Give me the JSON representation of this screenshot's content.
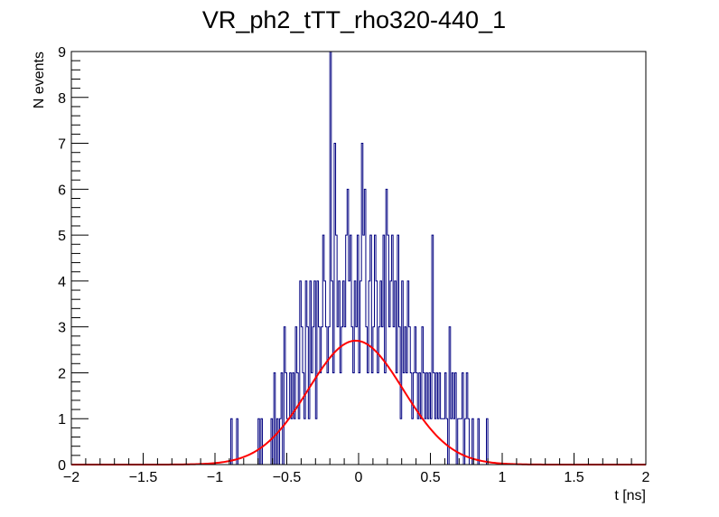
{
  "chart_data": {
    "type": "histogram",
    "title": "VR_ph2_tTT_rho320-440_1",
    "xlabel": "t [ns]",
    "ylabel": "N events",
    "xlim": [
      -2,
      2
    ],
    "ylim": [
      0,
      9
    ],
    "x_ticks": [
      "-2",
      "-1.5",
      "-1",
      "-0.5",
      "0",
      "0.5",
      "1",
      "1.5",
      "2"
    ],
    "y_ticks": [
      "0",
      "1",
      "2",
      "3",
      "4",
      "5",
      "6",
      "7",
      "8",
      "9"
    ],
    "bin_width": 0.01,
    "grid": false,
    "legend": "none",
    "histogram": {
      "color": "#000080",
      "nonzero_bins": [
        {
          "x": -0.89,
          "y": 1
        },
        {
          "x": -0.85,
          "y": 1
        },
        {
          "x": -0.7,
          "y": 1
        },
        {
          "x": -0.68,
          "y": 1
        },
        {
          "x": -0.61,
          "y": 1
        },
        {
          "x": -0.59,
          "y": 2
        },
        {
          "x": -0.57,
          "y": 1
        },
        {
          "x": -0.55,
          "y": 1
        },
        {
          "x": -0.54,
          "y": 2
        },
        {
          "x": -0.52,
          "y": 3
        },
        {
          "x": -0.51,
          "y": 2
        },
        {
          "x": -0.5,
          "y": 1
        },
        {
          "x": -0.49,
          "y": 1
        },
        {
          "x": -0.48,
          "y": 2
        },
        {
          "x": -0.47,
          "y": 1
        },
        {
          "x": -0.46,
          "y": 2
        },
        {
          "x": -0.45,
          "y": 1
        },
        {
          "x": -0.44,
          "y": 3
        },
        {
          "x": -0.43,
          "y": 2
        },
        {
          "x": -0.42,
          "y": 1
        },
        {
          "x": -0.41,
          "y": 4
        },
        {
          "x": -0.4,
          "y": 3
        },
        {
          "x": -0.39,
          "y": 2
        },
        {
          "x": -0.38,
          "y": 1
        },
        {
          "x": -0.37,
          "y": 4
        },
        {
          "x": -0.36,
          "y": 3
        },
        {
          "x": -0.35,
          "y": 1
        },
        {
          "x": -0.34,
          "y": 4
        },
        {
          "x": -0.33,
          "y": 2
        },
        {
          "x": -0.32,
          "y": 3
        },
        {
          "x": -0.31,
          "y": 4
        },
        {
          "x": -0.3,
          "y": 1
        },
        {
          "x": -0.29,
          "y": 4
        },
        {
          "x": -0.28,
          "y": 3
        },
        {
          "x": -0.27,
          "y": 2
        },
        {
          "x": -0.26,
          "y": 3
        },
        {
          "x": -0.25,
          "y": 5
        },
        {
          "x": -0.24,
          "y": 4
        },
        {
          "x": -0.23,
          "y": 3
        },
        {
          "x": -0.22,
          "y": 2
        },
        {
          "x": -0.21,
          "y": 3
        },
        {
          "x": -0.2,
          "y": 9
        },
        {
          "x": -0.19,
          "y": 4
        },
        {
          "x": -0.18,
          "y": 2
        },
        {
          "x": -0.17,
          "y": 7
        },
        {
          "x": -0.16,
          "y": 5
        },
        {
          "x": -0.15,
          "y": 3
        },
        {
          "x": -0.14,
          "y": 4
        },
        {
          "x": -0.13,
          "y": 2
        },
        {
          "x": -0.12,
          "y": 3
        },
        {
          "x": -0.11,
          "y": 4
        },
        {
          "x": -0.1,
          "y": 3
        },
        {
          "x": -0.09,
          "y": 5
        },
        {
          "x": -0.08,
          "y": 6
        },
        {
          "x": -0.07,
          "y": 4
        },
        {
          "x": -0.06,
          "y": 5
        },
        {
          "x": -0.05,
          "y": 3
        },
        {
          "x": -0.04,
          "y": 2
        },
        {
          "x": -0.03,
          "y": 4
        },
        {
          "x": -0.02,
          "y": 3
        },
        {
          "x": -0.01,
          "y": 5
        },
        {
          "x": 0.0,
          "y": 2
        },
        {
          "x": 0.01,
          "y": 4
        },
        {
          "x": 0.02,
          "y": 7
        },
        {
          "x": 0.03,
          "y": 5
        },
        {
          "x": 0.04,
          "y": 6
        },
        {
          "x": 0.05,
          "y": 3
        },
        {
          "x": 0.06,
          "y": 2
        },
        {
          "x": 0.07,
          "y": 4
        },
        {
          "x": 0.08,
          "y": 5
        },
        {
          "x": 0.09,
          "y": 2
        },
        {
          "x": 0.1,
          "y": 3
        },
        {
          "x": 0.11,
          "y": 5
        },
        {
          "x": 0.12,
          "y": 4
        },
        {
          "x": 0.13,
          "y": 2
        },
        {
          "x": 0.14,
          "y": 3
        },
        {
          "x": 0.15,
          "y": 4
        },
        {
          "x": 0.16,
          "y": 3
        },
        {
          "x": 0.17,
          "y": 5
        },
        {
          "x": 0.18,
          "y": 2
        },
        {
          "x": 0.19,
          "y": 6
        },
        {
          "x": 0.2,
          "y": 5
        },
        {
          "x": 0.21,
          "y": 3
        },
        {
          "x": 0.22,
          "y": 4
        },
        {
          "x": 0.23,
          "y": 5
        },
        {
          "x": 0.24,
          "y": 3
        },
        {
          "x": 0.25,
          "y": 4
        },
        {
          "x": 0.26,
          "y": 2
        },
        {
          "x": 0.27,
          "y": 5
        },
        {
          "x": 0.28,
          "y": 3
        },
        {
          "x": 0.29,
          "y": 1
        },
        {
          "x": 0.3,
          "y": 4
        },
        {
          "x": 0.31,
          "y": 2
        },
        {
          "x": 0.32,
          "y": 3
        },
        {
          "x": 0.33,
          "y": 2
        },
        {
          "x": 0.34,
          "y": 4
        },
        {
          "x": 0.35,
          "y": 3
        },
        {
          "x": 0.36,
          "y": 2
        },
        {
          "x": 0.37,
          "y": 1
        },
        {
          "x": 0.38,
          "y": 2
        },
        {
          "x": 0.39,
          "y": 3
        },
        {
          "x": 0.4,
          "y": 2
        },
        {
          "x": 0.41,
          "y": 1
        },
        {
          "x": 0.42,
          "y": 2
        },
        {
          "x": 0.43,
          "y": 1
        },
        {
          "x": 0.44,
          "y": 3
        },
        {
          "x": 0.45,
          "y": 2
        },
        {
          "x": 0.46,
          "y": 1
        },
        {
          "x": 0.47,
          "y": 2
        },
        {
          "x": 0.48,
          "y": 1
        },
        {
          "x": 0.49,
          "y": 2
        },
        {
          "x": 0.5,
          "y": 1
        },
        {
          "x": 0.51,
          "y": 5
        },
        {
          "x": 0.52,
          "y": 2
        },
        {
          "x": 0.53,
          "y": 1
        },
        {
          "x": 0.54,
          "y": 2
        },
        {
          "x": 0.55,
          "y": 1
        },
        {
          "x": 0.56,
          "y": 2
        },
        {
          "x": 0.57,
          "y": 1
        },
        {
          "x": 0.58,
          "y": 1
        },
        {
          "x": 0.59,
          "y": 1
        },
        {
          "x": 0.6,
          "y": 2
        },
        {
          "x": 0.61,
          "y": 1
        },
        {
          "x": 0.63,
          "y": 3
        },
        {
          "x": 0.64,
          "y": 1
        },
        {
          "x": 0.65,
          "y": 2
        },
        {
          "x": 0.66,
          "y": 1
        },
        {
          "x": 0.67,
          "y": 2
        },
        {
          "x": 0.69,
          "y": 1
        },
        {
          "x": 0.7,
          "y": 1
        },
        {
          "x": 0.71,
          "y": 1
        },
        {
          "x": 0.72,
          "y": 2
        },
        {
          "x": 0.74,
          "y": 1
        },
        {
          "x": 0.75,
          "y": 2
        },
        {
          "x": 0.76,
          "y": 1
        },
        {
          "x": 0.79,
          "y": 1
        },
        {
          "x": 0.83,
          "y": 1
        },
        {
          "x": 0.89,
          "y": 1
        }
      ]
    },
    "fit": {
      "type": "gaussian",
      "color": "#ff0000",
      "amplitude": 2.7,
      "mean": -0.02,
      "sigma": 0.33
    }
  }
}
